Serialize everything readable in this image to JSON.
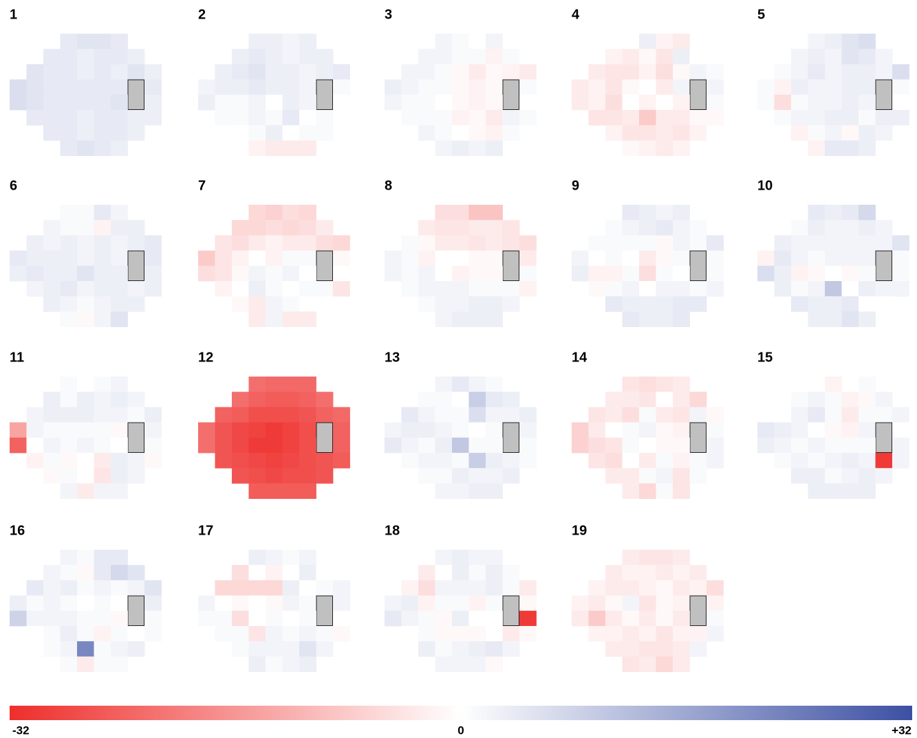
{
  "maps": [
    {
      "label": "1",
      "values": [
        4,
        5,
        5,
        4,
        4,
        4,
        3,
        4,
        4,
        3,
        5,
        4,
        4,
        3,
        4,
        3,
        5,
        3,
        6,
        5,
        4,
        4,
        4,
        4,
        4,
        null,
        4,
        6,
        5,
        4,
        4,
        4,
        4,
        5,
        null,
        3,
        4,
        4,
        4,
        3,
        4,
        4,
        3,
        3,
        4,
        4,
        3,
        4,
        4,
        3,
        4,
        5,
        4,
        3
      ]
    },
    {
      "label": "2",
      "values": [
        3,
        3,
        2,
        3,
        3,
        4,
        3,
        2,
        3,
        3,
        3,
        4,
        5,
        3,
        3,
        2,
        3,
        4,
        2,
        3,
        3,
        4,
        3,
        3,
        2,
        null,
        1,
        3,
        1,
        1,
        2,
        0,
        3,
        2,
        null,
        0,
        1,
        1,
        2,
        1,
        4,
        0,
        1,
        0,
        0,
        1,
        3,
        0,
        1,
        1,
        -2,
        -3,
        -3,
        -3
      ]
    },
    {
      "label": "3",
      "values": [
        2,
        1,
        0,
        2,
        2,
        2,
        1,
        1,
        -2,
        1,
        2,
        2,
        1,
        -1,
        -3,
        -1,
        -2,
        -3,
        3,
        2,
        1,
        1,
        -1,
        -2,
        -1,
        null,
        1,
        2,
        1,
        1,
        0,
        -1,
        -2,
        -1,
        null,
        0,
        1,
        1,
        1,
        -2,
        -1,
        -3,
        2,
        1,
        2,
        1,
        0,
        -1,
        -2,
        1,
        2,
        3,
        2,
        3
      ]
    },
    {
      "label": "4",
      "values": [
        0,
        3,
        -2,
        -3,
        -2,
        -3,
        -1,
        -4,
        3,
        0,
        -3,
        -4,
        -4,
        -2,
        -5,
        -1,
        2,
        1,
        -3,
        -2,
        -4,
        -1,
        0,
        -3,
        2,
        null,
        2,
        -3,
        -2,
        -5,
        0,
        -2,
        0,
        -2,
        null,
        1,
        -4,
        -4,
        -3,
        -8,
        -3,
        -3,
        -1,
        -1,
        -2,
        -4,
        -4,
        -3,
        -4,
        -2,
        -1,
        -2,
        -3,
        -2
      ]
    },
    {
      "label": "5",
      "values": [
        2,
        3,
        5,
        6,
        2,
        3,
        2,
        5,
        4,
        2,
        1,
        2,
        4,
        2,
        3,
        3,
        2,
        6,
        1,
        -2,
        3,
        2,
        2,
        3,
        3,
        null,
        1,
        1,
        -5,
        1,
        2,
        2,
        3,
        2,
        null,
        0,
        1,
        2,
        2,
        3,
        3,
        1,
        3,
        3,
        -2,
        1,
        2,
        -1,
        3,
        2,
        -2,
        4,
        4,
        3
      ]
    },
    {
      "label": "6",
      "values": [
        1,
        1,
        4,
        2,
        2,
        1,
        1,
        -2,
        3,
        3,
        3,
        2,
        3,
        2,
        3,
        2,
        3,
        4,
        4,
        3,
        3,
        3,
        2,
        3,
        2,
        null,
        4,
        3,
        4,
        3,
        3,
        5,
        3,
        3,
        null,
        3,
        2,
        3,
        4,
        2,
        3,
        3,
        2,
        3,
        3,
        2,
        1,
        2,
        3,
        3,
        1,
        -1,
        2,
        5
      ]
    },
    {
      "label": "7",
      "values": [
        -6,
        -7,
        -5,
        -6,
        -6,
        -6,
        -5,
        -6,
        -5,
        -3,
        -4,
        -5,
        -3,
        -2,
        -3,
        -3,
        -5,
        -6,
        -8,
        -4,
        -2,
        0,
        -2,
        1,
        1,
        null,
        -1,
        -5,
        -4,
        -1,
        2,
        1,
        2,
        0,
        null,
        0,
        -2,
        0,
        3,
        1,
        0,
        1,
        1,
        -4,
        -1,
        -3,
        2,
        1,
        0,
        0,
        -3,
        2,
        -3,
        -3
      ]
    },
    {
      "label": "8",
      "values": [
        -5,
        -5,
        -9,
        -9,
        -3,
        -4,
        -4,
        -3,
        -3,
        -4,
        1,
        -1,
        -3,
        -3,
        -4,
        -3,
        -4,
        -5,
        2,
        1,
        -2,
        0,
        0,
        -1,
        -1,
        null,
        -3,
        2,
        1,
        2,
        0,
        -2,
        -1,
        -1,
        null,
        1,
        1,
        2,
        2,
        2,
        1,
        1,
        1,
        -2,
        1,
        2,
        2,
        3,
        3,
        2,
        2,
        3,
        3,
        3
      ]
    },
    {
      "label": "9",
      "values": [
        4,
        3,
        2,
        3,
        1,
        2,
        3,
        4,
        2,
        1,
        1,
        1,
        1,
        1,
        -1,
        2,
        1,
        4,
        2,
        0,
        1,
        0,
        -3,
        -1,
        1,
        null,
        1,
        3,
        -2,
        -2,
        1,
        -5,
        1,
        0,
        null,
        1,
        -1,
        1,
        2,
        0,
        2,
        2,
        1,
        2,
        4,
        3,
        3,
        3,
        4,
        4,
        4,
        3,
        3,
        4
      ]
    },
    {
      "label": "10",
      "values": [
        4,
        3,
        4,
        7,
        1,
        3,
        2,
        2,
        3,
        2,
        3,
        2,
        2,
        2,
        2,
        2,
        2,
        5,
        -2,
        4,
        2,
        1,
        2,
        2,
        2,
        null,
        1,
        6,
        3,
        -2,
        -1,
        0,
        -1,
        1,
        null,
        1,
        3,
        1,
        2,
        10,
        0,
        3,
        2,
        2,
        4,
        3,
        3,
        4,
        0,
        0,
        3,
        3,
        5,
        3
      ]
    },
    {
      "label": "11",
      "values": [
        1,
        0,
        1,
        2,
        3,
        1,
        3,
        2,
        3,
        2,
        2,
        3,
        3,
        3,
        2,
        2,
        1,
        3,
        -14,
        2,
        1,
        1,
        1,
        1,
        -1,
        null,
        2,
        -24,
        0,
        2,
        1,
        2,
        1,
        0,
        null,
        1,
        -2,
        1,
        -1,
        0,
        -3,
        3,
        2,
        -1,
        -1,
        1,
        0,
        -4,
        3,
        2,
        2,
        -3,
        2,
        2
      ]
    },
    {
      "label": "12",
      "values": [
        -22,
        -23,
        -23,
        -23,
        -22,
        -24,
        -25,
        -25,
        -24,
        -22,
        -24,
        -25,
        -27,
        -27,
        -27,
        -26,
        -24,
        -23,
        -22,
        -26,
        -28,
        -29,
        -30,
        -29,
        -27,
        null,
        -24,
        -22,
        -26,
        -28,
        -30,
        -30,
        -29,
        -27,
        null,
        -24,
        -26,
        -27,
        -28,
        -29,
        -28,
        -27,
        -26,
        -25,
        -26,
        -27,
        -28,
        -27,
        -27,
        -26,
        -25,
        -25,
        -25,
        -25
      ]
    },
    {
      "label": "13",
      "values": [
        2,
        4,
        2,
        1,
        1,
        1,
        0,
        9,
        4,
        3,
        4,
        2,
        1,
        1,
        6,
        2,
        2,
        3,
        2,
        3,
        3,
        2,
        1,
        0,
        1,
        null,
        2,
        4,
        2,
        1,
        3,
        10,
        1,
        1,
        null,
        1,
        1,
        2,
        2,
        1,
        9,
        3,
        2,
        1,
        1,
        1,
        3,
        2,
        2,
        3,
        2,
        2,
        3,
        3
      ]
    },
    {
      "label": "14",
      "values": [
        -4,
        -5,
        -4,
        -3,
        -3,
        -3,
        -4,
        0,
        -3,
        -6,
        -4,
        -3,
        -5,
        1,
        -3,
        -4,
        2,
        -1,
        -7,
        -3,
        0,
        1,
        2,
        -1,
        -2,
        null,
        1,
        -7,
        -5,
        -4,
        1,
        0,
        -1,
        -1,
        null,
        2,
        -4,
        -5,
        0,
        -3,
        1,
        -2,
        1,
        2,
        -3,
        -3,
        1,
        2,
        -4,
        1,
        -3,
        -6,
        1,
        -4
      ]
    },
    {
      "label": "15",
      "values": [
        0,
        -2,
        0,
        1,
        1,
        2,
        1,
        -2,
        -1,
        2,
        0,
        2,
        4,
        1,
        -3,
        1,
        1,
        2,
        4,
        3,
        2,
        0,
        -1,
        -2,
        2,
        null,
        0,
        3,
        2,
        1,
        2,
        1,
        1,
        1,
        null,
        2,
        1,
        2,
        1,
        2,
        3,
        2,
        -30,
        2,
        3,
        3,
        1,
        2,
        3,
        2,
        3,
        3,
        3,
        3
      ]
    },
    {
      "label": "16",
      "values": [
        2,
        1,
        4,
        4,
        2,
        1,
        -1,
        4,
        7,
        5,
        4,
        2,
        3,
        1,
        2,
        1,
        2,
        5,
        3,
        1,
        2,
        1,
        0,
        1,
        0,
        null,
        3,
        8,
        2,
        2,
        2,
        1,
        1,
        -1,
        null,
        1,
        0,
        1,
        3,
        1,
        -2,
        1,
        0,
        1,
        1,
        2,
        22,
        1,
        2,
        3,
        1,
        -3,
        1,
        1
      ]
    },
    {
      "label": "17",
      "values": [
        3,
        2,
        1,
        2,
        -5,
        0,
        -2,
        0,
        3,
        0,
        -6,
        -6,
        -6,
        -6,
        3,
        0,
        1,
        2,
        2,
        0,
        -1,
        0,
        -1,
        2,
        1,
        null,
        2,
        1,
        1,
        -5,
        0,
        1,
        0,
        1,
        null,
        0,
        1,
        1,
        -4,
        2,
        1,
        2,
        1,
        -1,
        1,
        2,
        2,
        2,
        5,
        2,
        3,
        1,
        2,
        3
      ]
    },
    {
      "label": "18",
      "values": [
        2,
        3,
        2,
        2,
        -3,
        0,
        3,
        1,
        3,
        1,
        -2,
        -5,
        2,
        2,
        2,
        3,
        1,
        -3,
        2,
        3,
        -2,
        1,
        1,
        -2,
        1,
        null,
        -1,
        4,
        2,
        1,
        -1,
        3,
        0,
        0,
        null,
        -30,
        0,
        1,
        -1,
        -1,
        -1,
        0,
        -3,
        -1,
        3,
        1,
        2,
        3,
        4,
        2,
        2,
        2,
        2,
        -1
      ]
    },
    {
      "label": "19",
      "values": [
        -3,
        -4,
        -4,
        -3,
        -3,
        -2,
        -2,
        -3,
        -2,
        -3,
        -2,
        -3,
        -3,
        -2,
        -1,
        -3,
        -2,
        -5,
        -2,
        -3,
        -1,
        2,
        -4,
        -1,
        -2,
        null,
        -2,
        -3,
        -8,
        -3,
        -1,
        -3,
        -1,
        -3,
        null,
        1,
        -2,
        -2,
        -3,
        -2,
        -4,
        -2,
        -2,
        2,
        -3,
        -3,
        -4,
        -4,
        -3,
        2,
        -4,
        -3,
        -6,
        -3
      ]
    }
  ],
  "colorbar": {
    "lim": [
      -32,
      32
    ],
    "ticks": [
      -32,
      0,
      {
        "value": 32,
        "label": "+32"
      }
    ]
  }
}
